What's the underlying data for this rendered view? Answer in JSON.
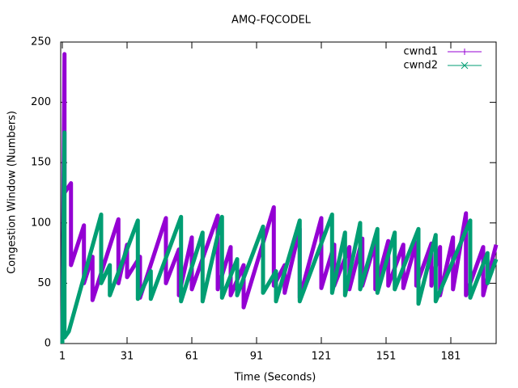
{
  "chart_data": {
    "type": "line",
    "title": "AMQ-FQCODEL",
    "x_label": "Time (Seconds)",
    "y_label": "Congestion Window (Numbers)",
    "xlim": [
      0.25,
      202
    ],
    "ylim": [
      0,
      250
    ],
    "xticks": [
      1,
      31,
      61,
      91,
      121,
      151,
      181
    ],
    "yticks": [
      0,
      50,
      100,
      150,
      200,
      250
    ],
    "legend": "top-right",
    "series": [
      {
        "name": "cwnd1",
        "color": "#9400d3",
        "x": [
          1,
          2,
          2,
          5,
          5,
          11,
          11,
          15,
          15,
          27,
          27,
          31,
          31,
          37,
          37,
          49,
          49,
          55,
          55,
          61,
          61,
          73,
          73,
          79,
          79,
          85,
          85,
          99,
          99,
          104,
          104,
          111,
          111,
          121,
          121,
          127,
          127,
          134,
          134,
          140,
          140,
          146,
          146,
          152,
          152,
          159,
          159,
          165,
          165,
          172,
          172,
          176,
          176,
          182,
          182,
          188,
          188,
          196,
          196,
          202
        ],
        "values": [
          0,
          240,
          125,
          133,
          65,
          98,
          50,
          72,
          36,
          103,
          50,
          82,
          55,
          72,
          38,
          104,
          50,
          78,
          40,
          88,
          45,
          106,
          45,
          80,
          40,
          65,
          30,
          113,
          48,
          65,
          42,
          95,
          38,
          104,
          46,
          82,
          48,
          80,
          45,
          87,
          48,
          84,
          45,
          85,
          48,
          82,
          46,
          84,
          48,
          83,
          48,
          80,
          40,
          88,
          45,
          108,
          40,
          80,
          40,
          82
        ]
      },
      {
        "name": "cwnd2",
        "color": "#009e73",
        "x": [
          1,
          2,
          2,
          4,
          4,
          19,
          19,
          23,
          23,
          36,
          36,
          42,
          42,
          56,
          56,
          66,
          66,
          75,
          75,
          82,
          82,
          94,
          94,
          100,
          100,
          111,
          111,
          126,
          126,
          132,
          132,
          139,
          139,
          147,
          147,
          155,
          155,
          166,
          166,
          174,
          174,
          190,
          190,
          198,
          198,
          202
        ],
        "values": [
          0,
          175,
          5,
          10,
          10,
          107,
          50,
          65,
          40,
          102,
          37,
          60,
          37,
          105,
          35,
          92,
          35,
          105,
          38,
          70,
          40,
          97,
          42,
          60,
          35,
          102,
          35,
          107,
          42,
          92,
          40,
          100,
          45,
          95,
          42,
          92,
          45,
          95,
          33,
          90,
          35,
          102,
          38,
          75,
          50,
          70
        ]
      }
    ]
  }
}
